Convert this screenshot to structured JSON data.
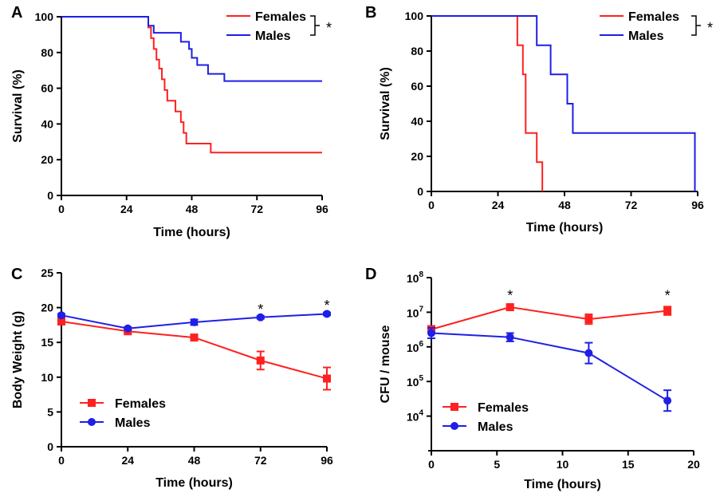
{
  "chart_data": [
    {
      "panel": "A",
      "type": "line",
      "step": true,
      "xlabel": "Time (hours)",
      "ylabel": "Survival (%)",
      "xlim": [
        0,
        96
      ],
      "ylim": [
        0,
        100
      ],
      "xticks": [
        0,
        24,
        48,
        72,
        96
      ],
      "yticks": [
        0,
        20,
        40,
        60,
        80,
        100
      ],
      "legend_position": "top-right",
      "bracket_label": "*",
      "series": [
        {
          "name": "Females",
          "color": "#ff2020",
          "points": [
            [
              0,
              100
            ],
            [
              31,
              100
            ],
            [
              32,
              94
            ],
            [
              33,
              88
            ],
            [
              34,
              82
            ],
            [
              35,
              76
            ],
            [
              36,
              71
            ],
            [
              37,
              65
            ],
            [
              38,
              59
            ],
            [
              39,
              53
            ],
            [
              42,
              47
            ],
            [
              44,
              41
            ],
            [
              45,
              35
            ],
            [
              46,
              29
            ],
            [
              55,
              24
            ],
            [
              96,
              24
            ]
          ]
        },
        {
          "name": "Males",
          "color": "#1f1fe6",
          "points": [
            [
              0,
              100
            ],
            [
              31,
              100
            ],
            [
              32,
              95
            ],
            [
              34,
              91
            ],
            [
              44,
              86
            ],
            [
              47,
              82
            ],
            [
              48,
              77
            ],
            [
              50,
              73
            ],
            [
              54,
              68
            ],
            [
              60,
              64
            ],
            [
              96,
              64
            ]
          ]
        }
      ]
    },
    {
      "panel": "B",
      "type": "line",
      "step": true,
      "xlabel": "Time (hours)",
      "ylabel": "Survival (%)",
      "xlim": [
        0,
        96
      ],
      "ylim": [
        0,
        100
      ],
      "xticks": [
        0,
        24,
        48,
        72,
        96
      ],
      "yticks": [
        0,
        20,
        40,
        60,
        80,
        100
      ],
      "legend_position": "top-right",
      "bracket_label": "*",
      "series": [
        {
          "name": "Females",
          "color": "#ff2020",
          "points": [
            [
              0,
              100
            ],
            [
              31,
              100
            ],
            [
              31,
              83.3
            ],
            [
              33,
              83.3
            ],
            [
              33,
              66.7
            ],
            [
              34,
              66.7
            ],
            [
              34,
              33.3
            ],
            [
              38,
              33.3
            ],
            [
              38,
              16.7
            ],
            [
              40,
              16.7
            ],
            [
              40,
              0
            ]
          ]
        },
        {
          "name": "Males",
          "color": "#1f1fe6",
          "points": [
            [
              0,
              100
            ],
            [
              38,
              100
            ],
            [
              38,
              83.3
            ],
            [
              43,
              83.3
            ],
            [
              43,
              66.7
            ],
            [
              49,
              66.7
            ],
            [
              49,
              50
            ],
            [
              51,
              50
            ],
            [
              51,
              33.3
            ],
            [
              95,
              33.3
            ],
            [
              95,
              0
            ]
          ]
        }
      ]
    },
    {
      "panel": "C",
      "type": "line",
      "xlabel": "Time (hours)",
      "ylabel": "Body Weight (g)",
      "xlim": [
        0,
        96
      ],
      "ylim": [
        0,
        25
      ],
      "xticks": [
        0,
        24,
        48,
        72,
        96
      ],
      "yticks": [
        0,
        5,
        10,
        15,
        20,
        25
      ],
      "legend_position": "bottom-left",
      "annotations": [
        {
          "x": 72,
          "y": 19.7,
          "text": "*"
        },
        {
          "x": 96,
          "y": 20.3,
          "text": "*"
        }
      ],
      "series": [
        {
          "name": "Females",
          "color": "#ff2020",
          "marker": "square",
          "points": [
            [
              0,
              18.0
            ],
            [
              24,
              16.6
            ],
            [
              48,
              15.7
            ],
            [
              72,
              12.4
            ],
            [
              96,
              9.8
            ]
          ],
          "errors": [
            0.3,
            0.2,
            0.4,
            1.3,
            1.6
          ]
        },
        {
          "name": "Males",
          "color": "#1f1fe6",
          "marker": "circle",
          "points": [
            [
              0,
              18.9
            ],
            [
              24,
              17.0
            ],
            [
              48,
              17.9
            ],
            [
              72,
              18.6
            ],
            [
              96,
              19.1
            ]
          ],
          "errors": [
            0.2,
            0.2,
            0.4,
            0.2,
            0.2
          ]
        }
      ]
    },
    {
      "panel": "D",
      "type": "line",
      "xlabel": "Time (hours)",
      "ylabel": "CFU / mouse",
      "xlim": [
        0,
        20
      ],
      "ylim": [
        1000,
        100000000
      ],
      "yscale": "log",
      "xticks": [
        0,
        5,
        10,
        15,
        20
      ],
      "yticks": [
        {
          "value": 10000,
          "base": "10",
          "exp": "4"
        },
        {
          "value": 100000,
          "base": "10",
          "exp": "5"
        },
        {
          "value": 1000000,
          "base": "10",
          "exp": "6"
        },
        {
          "value": 10000000,
          "base": "10",
          "exp": "7"
        },
        {
          "value": 100000000,
          "base": "10",
          "exp": "8"
        }
      ],
      "legend_position": "bottom-left",
      "annotations": [
        {
          "x": 6,
          "y": 30000000,
          "text": "*"
        },
        {
          "x": 18,
          "y": 30000000,
          "text": "*"
        }
      ],
      "series": [
        {
          "name": "Females",
          "color": "#ff2020",
          "marker": "square",
          "points": [
            [
              0,
              3200000
            ],
            [
              6,
              14000000
            ],
            [
              12,
              6300000
            ],
            [
              18,
              11000000
            ]
          ],
          "errors_log": [
            0.1,
            0.06,
            0.14,
            0.12
          ]
        },
        {
          "name": "Males",
          "color": "#1f1fe6",
          "marker": "circle",
          "points": [
            [
              0,
              2500000
            ],
            [
              6,
              1900000
            ],
            [
              12,
              660000
            ],
            [
              18,
              28000
            ]
          ],
          "errors_log": [
            0.15,
            0.12,
            0.3,
            0.3
          ]
        }
      ]
    }
  ]
}
